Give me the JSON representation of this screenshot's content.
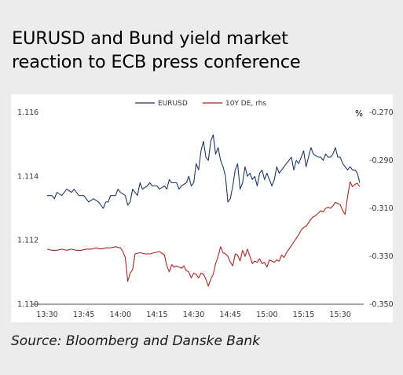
{
  "title_line1": "EURUSD and Bund yield market",
  "title_line2": "reaction to ECB press conference",
  "source": "Source: Bloomberg and Danske Bank",
  "colors": {
    "eurusd": "#1f3864",
    "yield": "#b22222",
    "axis": "#4d4d4d",
    "background": "#ececec"
  },
  "chart_data": {
    "type": "line",
    "title": "",
    "x_ticks": [
      "13:30",
      "13:45",
      "14:00",
      "14:15",
      "14:30",
      "14:45",
      "15:00",
      "15:15",
      "15:30"
    ],
    "x_range": [
      "13:30",
      "15:38"
    ],
    "left_axis": {
      "ticks": [
        "1.110",
        "1.112",
        "1.114",
        "1.116"
      ],
      "min": 1.11,
      "max": 1.116
    },
    "right_axis": {
      "unit": "%",
      "ticks": [
        "-0.350",
        "-0.330",
        "-0.310",
        "-0.290",
        "-0.270"
      ],
      "min": -0.35,
      "max": -0.27
    },
    "legend": {
      "position": "top-center"
    },
    "series": [
      {
        "name": "EURUSD",
        "axis": "left",
        "points": [
          [
            "13:30",
            1.1134
          ],
          [
            "13:32",
            1.1134
          ],
          [
            "13:33",
            1.1133
          ],
          [
            "13:34",
            1.1135
          ],
          [
            "13:36",
            1.1134
          ],
          [
            "13:38",
            1.1136
          ],
          [
            "13:40",
            1.1135
          ],
          [
            "13:41",
            1.1136
          ],
          [
            "13:43",
            1.1134
          ],
          [
            "13:45",
            1.1134
          ],
          [
            "13:47",
            1.1132
          ],
          [
            "13:49",
            1.1133
          ],
          [
            "13:51",
            1.1132
          ],
          [
            "13:53",
            1.113
          ],
          [
            "13:54",
            1.1132
          ],
          [
            "13:55",
            1.1132
          ],
          [
            "13:56",
            1.1134
          ],
          [
            "13:58",
            1.1134
          ],
          [
            "13:59",
            1.1136
          ],
          [
            "14:00",
            1.1135
          ],
          [
            "14:02",
            1.1134
          ],
          [
            "14:03",
            1.1131
          ],
          [
            "14:04",
            1.1132
          ],
          [
            "14:05",
            1.1136
          ],
          [
            "14:07",
            1.1134
          ],
          [
            "14:08",
            1.1138
          ],
          [
            "14:09",
            1.1136
          ],
          [
            "14:11",
            1.1137
          ],
          [
            "14:12",
            1.1138
          ],
          [
            "14:13",
            1.1137
          ],
          [
            "14:15",
            1.1137
          ],
          [
            "14:16",
            1.1136
          ],
          [
            "14:18",
            1.1137
          ],
          [
            "14:19",
            1.1136
          ],
          [
            "14:20",
            1.1139
          ],
          [
            "14:21",
            1.1138
          ],
          [
            "14:23",
            1.1138
          ],
          [
            "14:24",
            1.1136
          ],
          [
            "14:25",
            1.1137
          ],
          [
            "14:27",
            1.1138
          ],
          [
            "14:28",
            1.114
          ],
          [
            "14:29",
            1.1137
          ],
          [
            "14:30",
            1.1138
          ],
          [
            "14:31",
            1.1144
          ],
          [
            "14:32",
            1.1142
          ],
          [
            "14:33",
            1.1148
          ],
          [
            "14:34",
            1.1151
          ],
          [
            "14:35",
            1.1146
          ],
          [
            "14:36",
            1.1145
          ],
          [
            "14:37",
            1.1151
          ],
          [
            "14:38",
            1.1153
          ],
          [
            "14:39",
            1.1147
          ],
          [
            "14:40",
            1.1149
          ],
          [
            "14:41",
            1.1145
          ],
          [
            "14:42",
            1.1143
          ],
          [
            "14:43",
            1.114
          ],
          [
            "14:44",
            1.1132
          ],
          [
            "14:45",
            1.1133
          ],
          [
            "14:46",
            1.1137
          ],
          [
            "14:47",
            1.1142
          ],
          [
            "14:48",
            1.1144
          ],
          [
            "14:49",
            1.1136
          ],
          [
            "14:50",
            1.1138
          ],
          [
            "14:51",
            1.1143
          ],
          [
            "14:52",
            1.114
          ],
          [
            "14:53",
            1.1141
          ],
          [
            "14:54",
            1.1139
          ],
          [
            "14:55",
            1.114
          ],
          [
            "14:56",
            1.1137
          ],
          [
            "14:57",
            1.1141
          ],
          [
            "14:58",
            1.1142
          ],
          [
            "14:59",
            1.1139
          ],
          [
            "15:00",
            1.1141
          ],
          [
            "15:02",
            1.1137
          ],
          [
            "15:03",
            1.1139
          ],
          [
            "15:04",
            1.1143
          ],
          [
            "15:05",
            1.1141
          ],
          [
            "15:07",
            1.1143
          ],
          [
            "15:08",
            1.1144
          ],
          [
            "15:09",
            1.1145
          ],
          [
            "15:10",
            1.1146
          ],
          [
            "15:11",
            1.1142
          ],
          [
            "15:12",
            1.1145
          ],
          [
            "15:13",
            1.1144
          ],
          [
            "15:15",
            1.1148
          ],
          [
            "15:16",
            1.1143
          ],
          [
            "15:17",
            1.1146
          ],
          [
            "15:18",
            1.1149
          ],
          [
            "15:19",
            1.1147
          ],
          [
            "15:21",
            1.1146
          ],
          [
            "15:22",
            1.1146
          ],
          [
            "15:23",
            1.1145
          ],
          [
            "15:24",
            1.1147
          ],
          [
            "15:25",
            1.1146
          ],
          [
            "15:26",
            1.1146
          ],
          [
            "15:27",
            1.1147
          ],
          [
            "15:28",
            1.1149
          ],
          [
            "15:29",
            1.1146
          ],
          [
            "15:30",
            1.1146
          ],
          [
            "15:31",
            1.1144
          ],
          [
            "15:32",
            1.1143
          ],
          [
            "15:33",
            1.1142
          ],
          [
            "15:34",
            1.1143
          ],
          [
            "15:35",
            1.1142
          ],
          [
            "15:36",
            1.1142
          ],
          [
            "15:37",
            1.1141
          ],
          [
            "15:38",
            1.1138
          ]
        ]
      },
      {
        "name": "10Y DE, rhs",
        "axis": "right",
        "points": [
          [
            "13:30",
            -0.327
          ],
          [
            "13:32",
            -0.3275
          ],
          [
            "13:34",
            -0.3275
          ],
          [
            "13:36",
            -0.327
          ],
          [
            "13:38",
            -0.3275
          ],
          [
            "13:40",
            -0.327
          ],
          [
            "13:42",
            -0.3275
          ],
          [
            "13:44",
            -0.3275
          ],
          [
            "13:46",
            -0.327
          ],
          [
            "13:48",
            -0.327
          ],
          [
            "13:50",
            -0.3265
          ],
          [
            "13:52",
            -0.327
          ],
          [
            "13:54",
            -0.3265
          ],
          [
            "13:56",
            -0.3265
          ],
          [
            "13:58",
            -0.326
          ],
          [
            "14:00",
            -0.3265
          ],
          [
            "14:01",
            -0.328
          ],
          [
            "14:02",
            -0.3305
          ],
          [
            "14:03",
            -0.3405
          ],
          [
            "14:04",
            -0.337
          ],
          [
            "14:05",
            -0.3355
          ],
          [
            "14:06",
            -0.329
          ],
          [
            "14:08",
            -0.3285
          ],
          [
            "14:10",
            -0.329
          ],
          [
            "14:12",
            -0.329
          ],
          [
            "14:14",
            -0.3285
          ],
          [
            "14:16",
            -0.328
          ],
          [
            "14:18",
            -0.3295
          ],
          [
            "14:19",
            -0.334
          ],
          [
            "14:20",
            -0.3365
          ],
          [
            "14:21",
            -0.3335
          ],
          [
            "14:22",
            -0.3345
          ],
          [
            "14:23",
            -0.334
          ],
          [
            "14:24",
            -0.3345
          ],
          [
            "14:25",
            -0.335
          ],
          [
            "14:26",
            -0.334
          ],
          [
            "14:27",
            -0.336
          ],
          [
            "14:28",
            -0.3365
          ],
          [
            "14:29",
            -0.339
          ],
          [
            "14:30",
            -0.337
          ],
          [
            "14:31",
            -0.3375
          ],
          [
            "14:32",
            -0.339
          ],
          [
            "14:33",
            -0.337
          ],
          [
            "14:34",
            -0.3375
          ],
          [
            "14:35",
            -0.3395
          ],
          [
            "14:36",
            -0.3425
          ],
          [
            "14:37",
            -0.3395
          ],
          [
            "14:38",
            -0.3375
          ],
          [
            "14:39",
            -0.333
          ],
          [
            "14:40",
            -0.33
          ],
          [
            "14:41",
            -0.326
          ],
          [
            "14:42",
            -0.3285
          ],
          [
            "14:43",
            -0.329
          ],
          [
            "14:44",
            -0.33
          ],
          [
            "14:45",
            -0.3325
          ],
          [
            "14:46",
            -0.334
          ],
          [
            "14:47",
            -0.329
          ],
          [
            "14:48",
            -0.3295
          ],
          [
            "14:49",
            -0.332
          ],
          [
            "14:50",
            -0.3275
          ],
          [
            "14:51",
            -0.33
          ],
          [
            "14:52",
            -0.327
          ],
          [
            "14:53",
            -0.33
          ],
          [
            "14:54",
            -0.333
          ],
          [
            "14:55",
            -0.332
          ],
          [
            "14:56",
            -0.3325
          ],
          [
            "14:57",
            -0.331
          ],
          [
            "14:58",
            -0.333
          ],
          [
            "14:59",
            -0.3325
          ],
          [
            "15:00",
            -0.3345
          ],
          [
            "15:01",
            -0.3315
          ],
          [
            "15:02",
            -0.332
          ],
          [
            "15:03",
            -0.3325
          ],
          [
            "15:04",
            -0.3315
          ],
          [
            "15:05",
            -0.332
          ],
          [
            "15:06",
            -0.3295
          ],
          [
            "15:07",
            -0.3305
          ],
          [
            "15:08",
            -0.3285
          ],
          [
            "15:09",
            -0.327
          ],
          [
            "15:10",
            -0.3255
          ],
          [
            "15:11",
            -0.324
          ],
          [
            "15:12",
            -0.3225
          ],
          [
            "15:13",
            -0.321
          ],
          [
            "15:14",
            -0.319
          ],
          [
            "15:15",
            -0.318
          ],
          [
            "15:16",
            -0.3175
          ],
          [
            "15:17",
            -0.316
          ],
          [
            "15:18",
            -0.3145
          ],
          [
            "15:19",
            -0.3135
          ],
          [
            "15:20",
            -0.313
          ],
          [
            "15:21",
            -0.312
          ],
          [
            "15:22",
            -0.311
          ],
          [
            "15:23",
            -0.3115
          ],
          [
            "15:24",
            -0.31
          ],
          [
            "15:25",
            -0.3095
          ],
          [
            "15:26",
            -0.31
          ],
          [
            "15:27",
            -0.309
          ],
          [
            "15:28",
            -0.3075
          ],
          [
            "15:29",
            -0.308
          ],
          [
            "15:30",
            -0.3085
          ],
          [
            "15:31",
            -0.311
          ],
          [
            "15:32",
            -0.3125
          ],
          [
            "15:33",
            -0.305
          ],
          [
            "15:34",
            -0.299
          ],
          [
            "15:35",
            -0.301
          ],
          [
            "15:36",
            -0.3
          ],
          [
            "15:37",
            -0.2995
          ],
          [
            "15:38",
            -0.301
          ]
        ]
      }
    ]
  }
}
